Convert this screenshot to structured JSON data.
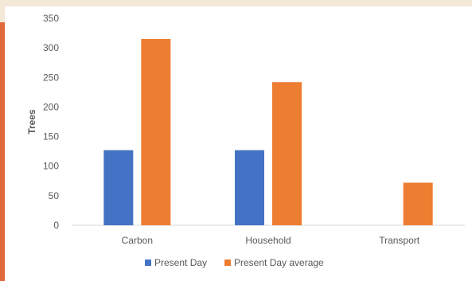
{
  "chart_data": {
    "type": "bar",
    "categories": [
      "Carbon",
      "Household",
      "Transport"
    ],
    "series": [
      {
        "name": "Present Day",
        "values": [
          127,
          127,
          null
        ],
        "color": "#4472c4"
      },
      {
        "name": "Present Day average",
        "values": [
          315,
          242,
          72
        ],
        "color": "#ed7d31"
      }
    ],
    "title": "",
    "xlabel": "",
    "ylabel": "Trees",
    "ylim": [
      0,
      350
    ],
    "yticks": [
      0,
      50,
      100,
      150,
      200,
      250,
      300,
      350
    ],
    "grid": false,
    "legend_position": "bottom"
  }
}
